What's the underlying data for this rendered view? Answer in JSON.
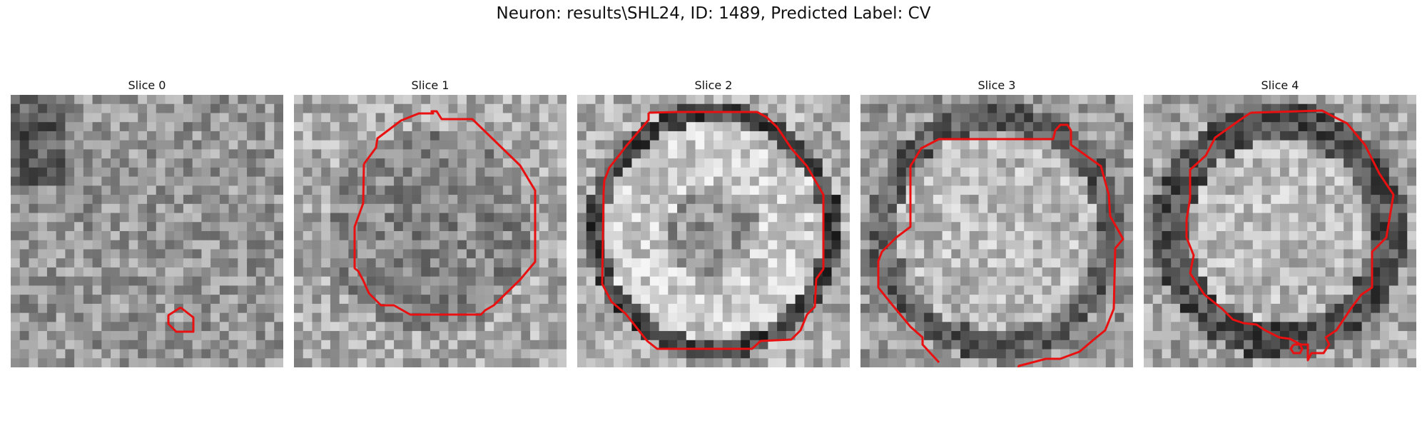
{
  "figure": {
    "title": "Neuron: results\\SHL24, ID: 1489, Predicted Label: CV"
  },
  "panels": [
    {
      "title": "Slice 0",
      "style": "noise"
    },
    {
      "title": "Slice 1",
      "style": "ring-soft"
    },
    {
      "title": "Slice 2",
      "style": "disc-bright"
    },
    {
      "title": "Slice 3",
      "style": "disc-mid"
    },
    {
      "title": "Slice 4",
      "style": "ring-dark"
    }
  ],
  "colors": {
    "contour": "#e81010"
  }
}
